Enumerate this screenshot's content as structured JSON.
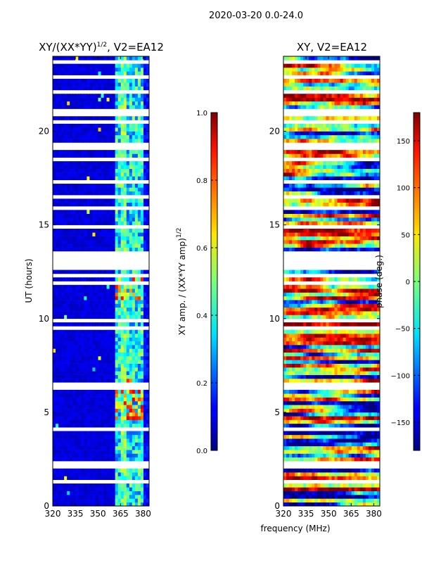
{
  "suptitle": "2020-03-20 0.0-24.0",
  "chart_data": [
    {
      "type": "heatmap",
      "title_base": "XY/(XX*YY)",
      "title_exp": "1/2",
      "title_suffix": ", V2=EA12",
      "ylabel": "UT (hours)",
      "xlabel": "",
      "xlim": [
        320,
        384
      ],
      "ylim": [
        0,
        24
      ],
      "xticks": [
        320,
        335,
        350,
        365,
        380
      ],
      "yticks": [
        0,
        5,
        10,
        15,
        20
      ],
      "colorbar": {
        "label_base": "XY amp. / (XX*YY amp)",
        "label_exp": "1/2",
        "range": [
          0.0,
          1.0
        ],
        "ticks": [
          "0.0",
          "0.2",
          "0.4",
          "0.6",
          "0.8",
          "1.0"
        ],
        "colormap": "jet"
      }
    },
    {
      "type": "heatmap",
      "title": "XY, V2=EA12",
      "ylabel": "",
      "xlabel": "frequency (MHz)",
      "xlim": [
        320,
        384
      ],
      "ylim": [
        0,
        24
      ],
      "xticks": [
        320,
        335,
        350,
        365,
        380
      ],
      "yticks": [
        0,
        5,
        10,
        15,
        20
      ],
      "colorbar": {
        "label": "phase (deg.)",
        "range": [
          -180,
          180
        ],
        "ticks": [
          "−150",
          "−100",
          "−50",
          "0",
          "50",
          "100",
          "150"
        ],
        "colormap": "jet"
      }
    }
  ]
}
